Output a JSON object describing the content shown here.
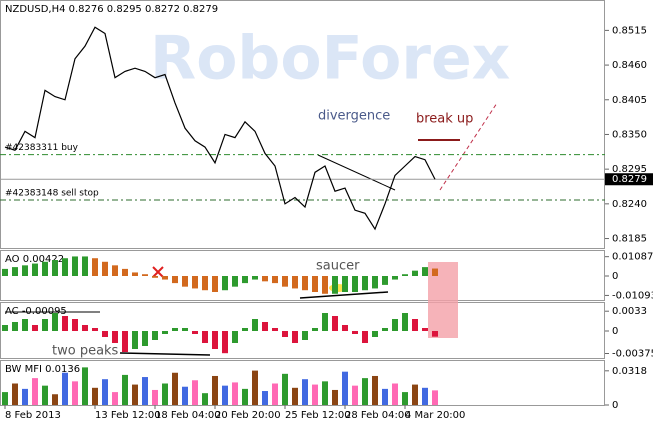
{
  "chart_data": [
    {
      "type": "line",
      "title": "NZDUSD,H4  0.8276 0.8295 0.8272 0.8279",
      "watermark": "RoboForex",
      "color": "#000000",
      "categories": [
        "8 Feb 2013",
        null,
        null,
        null,
        null,
        null,
        null,
        null,
        null,
        "13 Feb 12:00",
        null,
        null,
        null,
        null,
        null,
        "18 Feb 04:00",
        null,
        null,
        null,
        null,
        null,
        "20 Feb 20:00",
        null,
        null,
        null,
        null,
        null,
        null,
        "25 Feb 12:00",
        null,
        null,
        null,
        null,
        null,
        "28 Feb 04:00",
        null,
        null,
        null,
        null,
        null,
        "4 Mar 20:00",
        null,
        null,
        null
      ],
      "values": [
        0.833,
        0.8325,
        0.8355,
        0.8345,
        0.842,
        0.841,
        0.8405,
        0.847,
        0.849,
        0.852,
        0.851,
        0.844,
        0.845,
        0.8455,
        0.845,
        0.844,
        0.8445,
        0.84,
        0.836,
        0.834,
        0.833,
        0.8305,
        0.835,
        0.8345,
        0.837,
        0.8355,
        0.832,
        0.83,
        0.824,
        0.825,
        0.8235,
        0.829,
        0.83,
        0.826,
        0.8265,
        0.823,
        0.8225,
        0.82,
        0.824,
        0.8285,
        0.83,
        0.8315,
        0.831,
        0.8279
      ],
      "ylim": [
        0.817,
        0.856
      ],
      "yticks": [
        0.8185,
        {
          "value": 0.824,
          "label": "0.8240"
        },
        0.8295,
        {
          "value": 0.835,
          "label": "0.8350"
        },
        0.8405,
        {
          "value": 0.846,
          "label": "0.8460"
        },
        0.8515
      ],
      "levels": [
        {
          "label": "#42383311 buy",
          "value": 0.8318,
          "color": "#2e8b2e"
        },
        {
          "label": "#42383148 sell stop",
          "value": 0.8246,
          "color": "#2e6b2e"
        }
      ],
      "last_price": 0.8279,
      "annotations": [
        "divergence",
        "break up"
      ]
    },
    {
      "type": "bar",
      "title": "AO 0.00422",
      "up_color": "#2e9a2e",
      "down_color": "#d2691e",
      "values": [
        0.004,
        0.005,
        0.006,
        0.007,
        0.008,
        0.009,
        0.01,
        0.011,
        0.011,
        0.01,
        0.008,
        0.006,
        0.004,
        0.002,
        0.001,
        -0.001,
        -0.002,
        -0.004,
        -0.006,
        -0.007,
        -0.008,
        -0.009,
        -0.008,
        -0.006,
        -0.004,
        -0.002,
        -0.003,
        -0.004,
        -0.006,
        -0.007,
        -0.008,
        -0.009,
        -0.01,
        -0.01,
        -0.009,
        -0.009,
        -0.008,
        -0.007,
        -0.005,
        -0.002,
        0.001,
        0.003,
        0.005,
        0.0042
      ],
      "ylim": [
        -0.0135,
        0.0135
      ],
      "yticks": [
        0.01087,
        0,
        -0.01093
      ],
      "annotations": [
        "saucer"
      ]
    },
    {
      "type": "bar",
      "title": "AC -0.00095",
      "up_color": "#2e9a2e",
      "down_color": "#dc143c",
      "values": [
        0.001,
        0.0015,
        0.002,
        0.001,
        0.002,
        0.003,
        0.0025,
        0.002,
        0.001,
        0.0005,
        -0.001,
        -0.002,
        -0.0035,
        -0.003,
        -0.0025,
        -0.0015,
        -0.0005,
        0.0005,
        0.0005,
        -0.0005,
        -0.002,
        -0.003,
        -0.0037,
        -0.002,
        0.0005,
        0.002,
        0.0015,
        0.0005,
        -0.001,
        -0.002,
        -0.0015,
        0.0005,
        0.003,
        0.0025,
        0.001,
        -0.0005,
        -0.002,
        -0.001,
        0.0005,
        0.002,
        0.003,
        0.002,
        0.0005,
        -0.00095
      ],
      "ylim": [
        -0.0045,
        0.0045
      ],
      "yticks": [
        0.0033,
        0,
        -0.00375
      ],
      "annotations": [
        "two peaks"
      ]
    },
    {
      "type": "bar",
      "title": "BW MFI 0.0136",
      "palette": [
        "#2e9a2e",
        "#8b4513",
        "#4169e1",
        "#ff69b4"
      ],
      "values": [
        0.012,
        0.02,
        0.015,
        0.025,
        0.018,
        0.01,
        0.03,
        0.022,
        0.035,
        0.016,
        0.024,
        0.012,
        0.028,
        0.019,
        0.026,
        0.014,
        0.02,
        0.03,
        0.017,
        0.023,
        0.011,
        0.027,
        0.018,
        0.021,
        0.015,
        0.032,
        0.013,
        0.02,
        0.029,
        0.016,
        0.024,
        0.019,
        0.022,
        0.014,
        0.031,
        0.018,
        0.025,
        0.027,
        0.015,
        0.02,
        0.012,
        0.019,
        0.016,
        0.0136
      ],
      "ylim": [
        0,
        0.04
      ],
      "yticks": [
        0.0318,
        0
      ]
    }
  ]
}
